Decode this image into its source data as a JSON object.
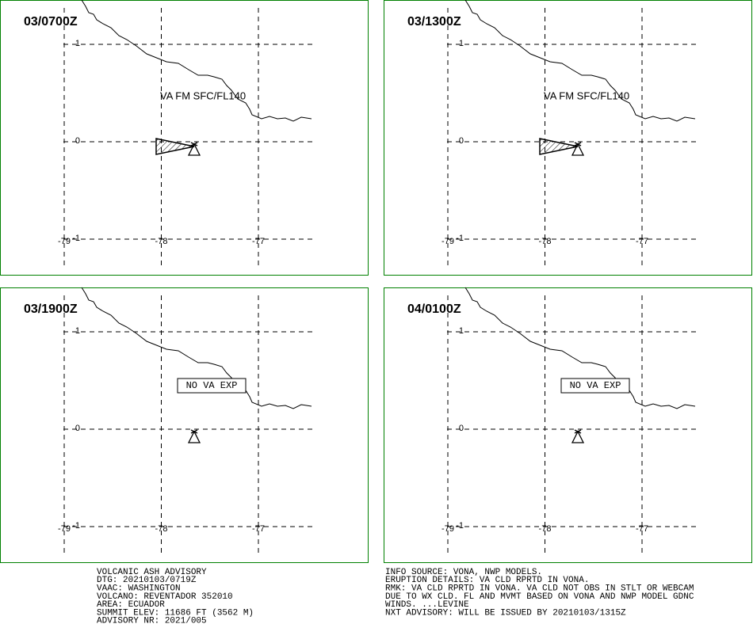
{
  "panels": [
    {
      "time": "03/0700Z",
      "annotation": "VA FM SFC/FL140",
      "boxed": false,
      "ash_cloud": true
    },
    {
      "time": "03/1300Z",
      "annotation": "VA FM SFC/FL140",
      "boxed": false,
      "ash_cloud": true
    },
    {
      "time": "03/1900Z",
      "annotation": "NO VA EXP",
      "boxed": true,
      "ash_cloud": false
    },
    {
      "time": "04/0100Z",
      "annotation": "NO VA EXP",
      "boxed": true,
      "ash_cloud": false
    }
  ],
  "lat_ticks": [
    1,
    0,
    -1
  ],
  "lon_ticks": [
    -79,
    -78,
    -77
  ],
  "text_left": [
    "VOLCANIC ASH ADVISORY",
    "DTG: 20210103/0719Z",
    "VAAC: WASHINGTON",
    "VOLCANO: REVENTADOR 352010",
    "AREA: ECUADOR",
    "SUMMIT ELEV: 11686 FT (3562 M)",
    "ADVISORY NR: 2021/005"
  ],
  "text_right": [
    "INFO SOURCE: VONA, NWP MODELS.",
    "ERUPTION DETAILS: VA CLD RPRTD IN VONA.",
    "RMK: VA CLD RPRTD IN VONA. VA CLD NOT OBS IN STLT OR WEBCAM",
    "DUE TO WX CLD. FL AND MVMT BASED ON VONA AND NWP MODEL GDNC",
    "WINDS. ...LEVINE",
    "NXT ADVISORY: WILL BE ISSUED BY 20210103/1315Z"
  ]
}
